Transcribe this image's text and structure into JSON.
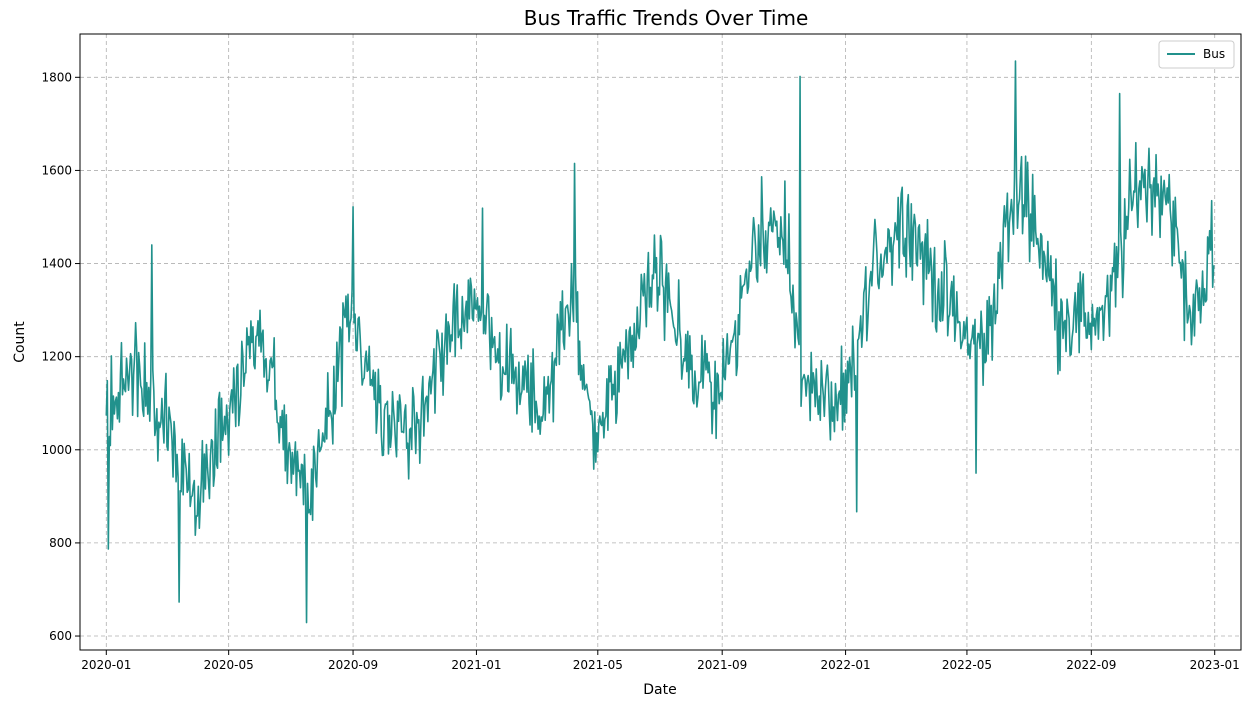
{
  "chart_data": {
    "type": "line",
    "title": "Bus Traffic Trends Over Time",
    "xlabel": "Date",
    "ylabel": "Count",
    "xlim": [
      "2019-12-06",
      "2023-01-27"
    ],
    "ylim": [
      570,
      1893
    ],
    "x_ticks": [
      "2020-01",
      "2020-05",
      "2020-09",
      "2021-01",
      "2021-05",
      "2021-09",
      "2022-01",
      "2022-05",
      "2022-09",
      "2023-01"
    ],
    "y_ticks": [
      600,
      800,
      1000,
      1200,
      1400,
      1600,
      1800
    ],
    "grid": true,
    "legend_position": "top-right",
    "series": [
      {
        "name": "Bus",
        "color": "#21918c",
        "x_start": "2020-01-01",
        "x_end": "2022-12-31",
        "frequency": "daily",
        "points": 1096,
        "seasonal_profile": {
          "days": [
            0,
            30,
            60,
            90,
            120,
            150,
            180,
            200,
            240,
            260,
            300,
            330,
            366,
            400,
            430,
            460,
            485,
            520,
            545,
            580,
            610,
            640,
            670,
            690,
            730,
            760,
            790,
            820,
            850,
            870,
            890,
            910,
            940,
            960,
            990,
            1020,
            1050,
            1070,
            1095
          ],
          "values": [
            1080,
            1180,
            1040,
            880,
            1080,
            1260,
            990,
            870,
            1280,
            1160,
            1020,
            1220,
            1320,
            1160,
            1080,
            1330,
            1000,
            1250,
            1400,
            1160,
            1130,
            1460,
            1460,
            1140,
            1080,
            1400,
            1510,
            1360,
            1240,
            1220,
            1480,
            1560,
            1300,
            1280,
            1290,
            1580,
            1560,
            1280,
            1420
          ]
        },
        "noise_range": 150,
        "notable_points": [
          {
            "date": "2020-01-03",
            "value": 787
          },
          {
            "date": "2020-02-15",
            "value": 1440
          },
          {
            "date": "2020-03-13",
            "value": 673
          },
          {
            "date": "2020-07-17",
            "value": 629
          },
          {
            "date": "2020-09-01",
            "value": 1522
          },
          {
            "date": "2021-01-07",
            "value": 1519
          },
          {
            "date": "2021-04-08",
            "value": 1615
          },
          {
            "date": "2021-11-17",
            "value": 1802
          },
          {
            "date": "2022-01-12",
            "value": 867
          },
          {
            "date": "2022-05-10",
            "value": 950
          },
          {
            "date": "2022-06-18",
            "value": 1835
          },
          {
            "date": "2022-09-29",
            "value": 1765
          }
        ]
      }
    ]
  }
}
